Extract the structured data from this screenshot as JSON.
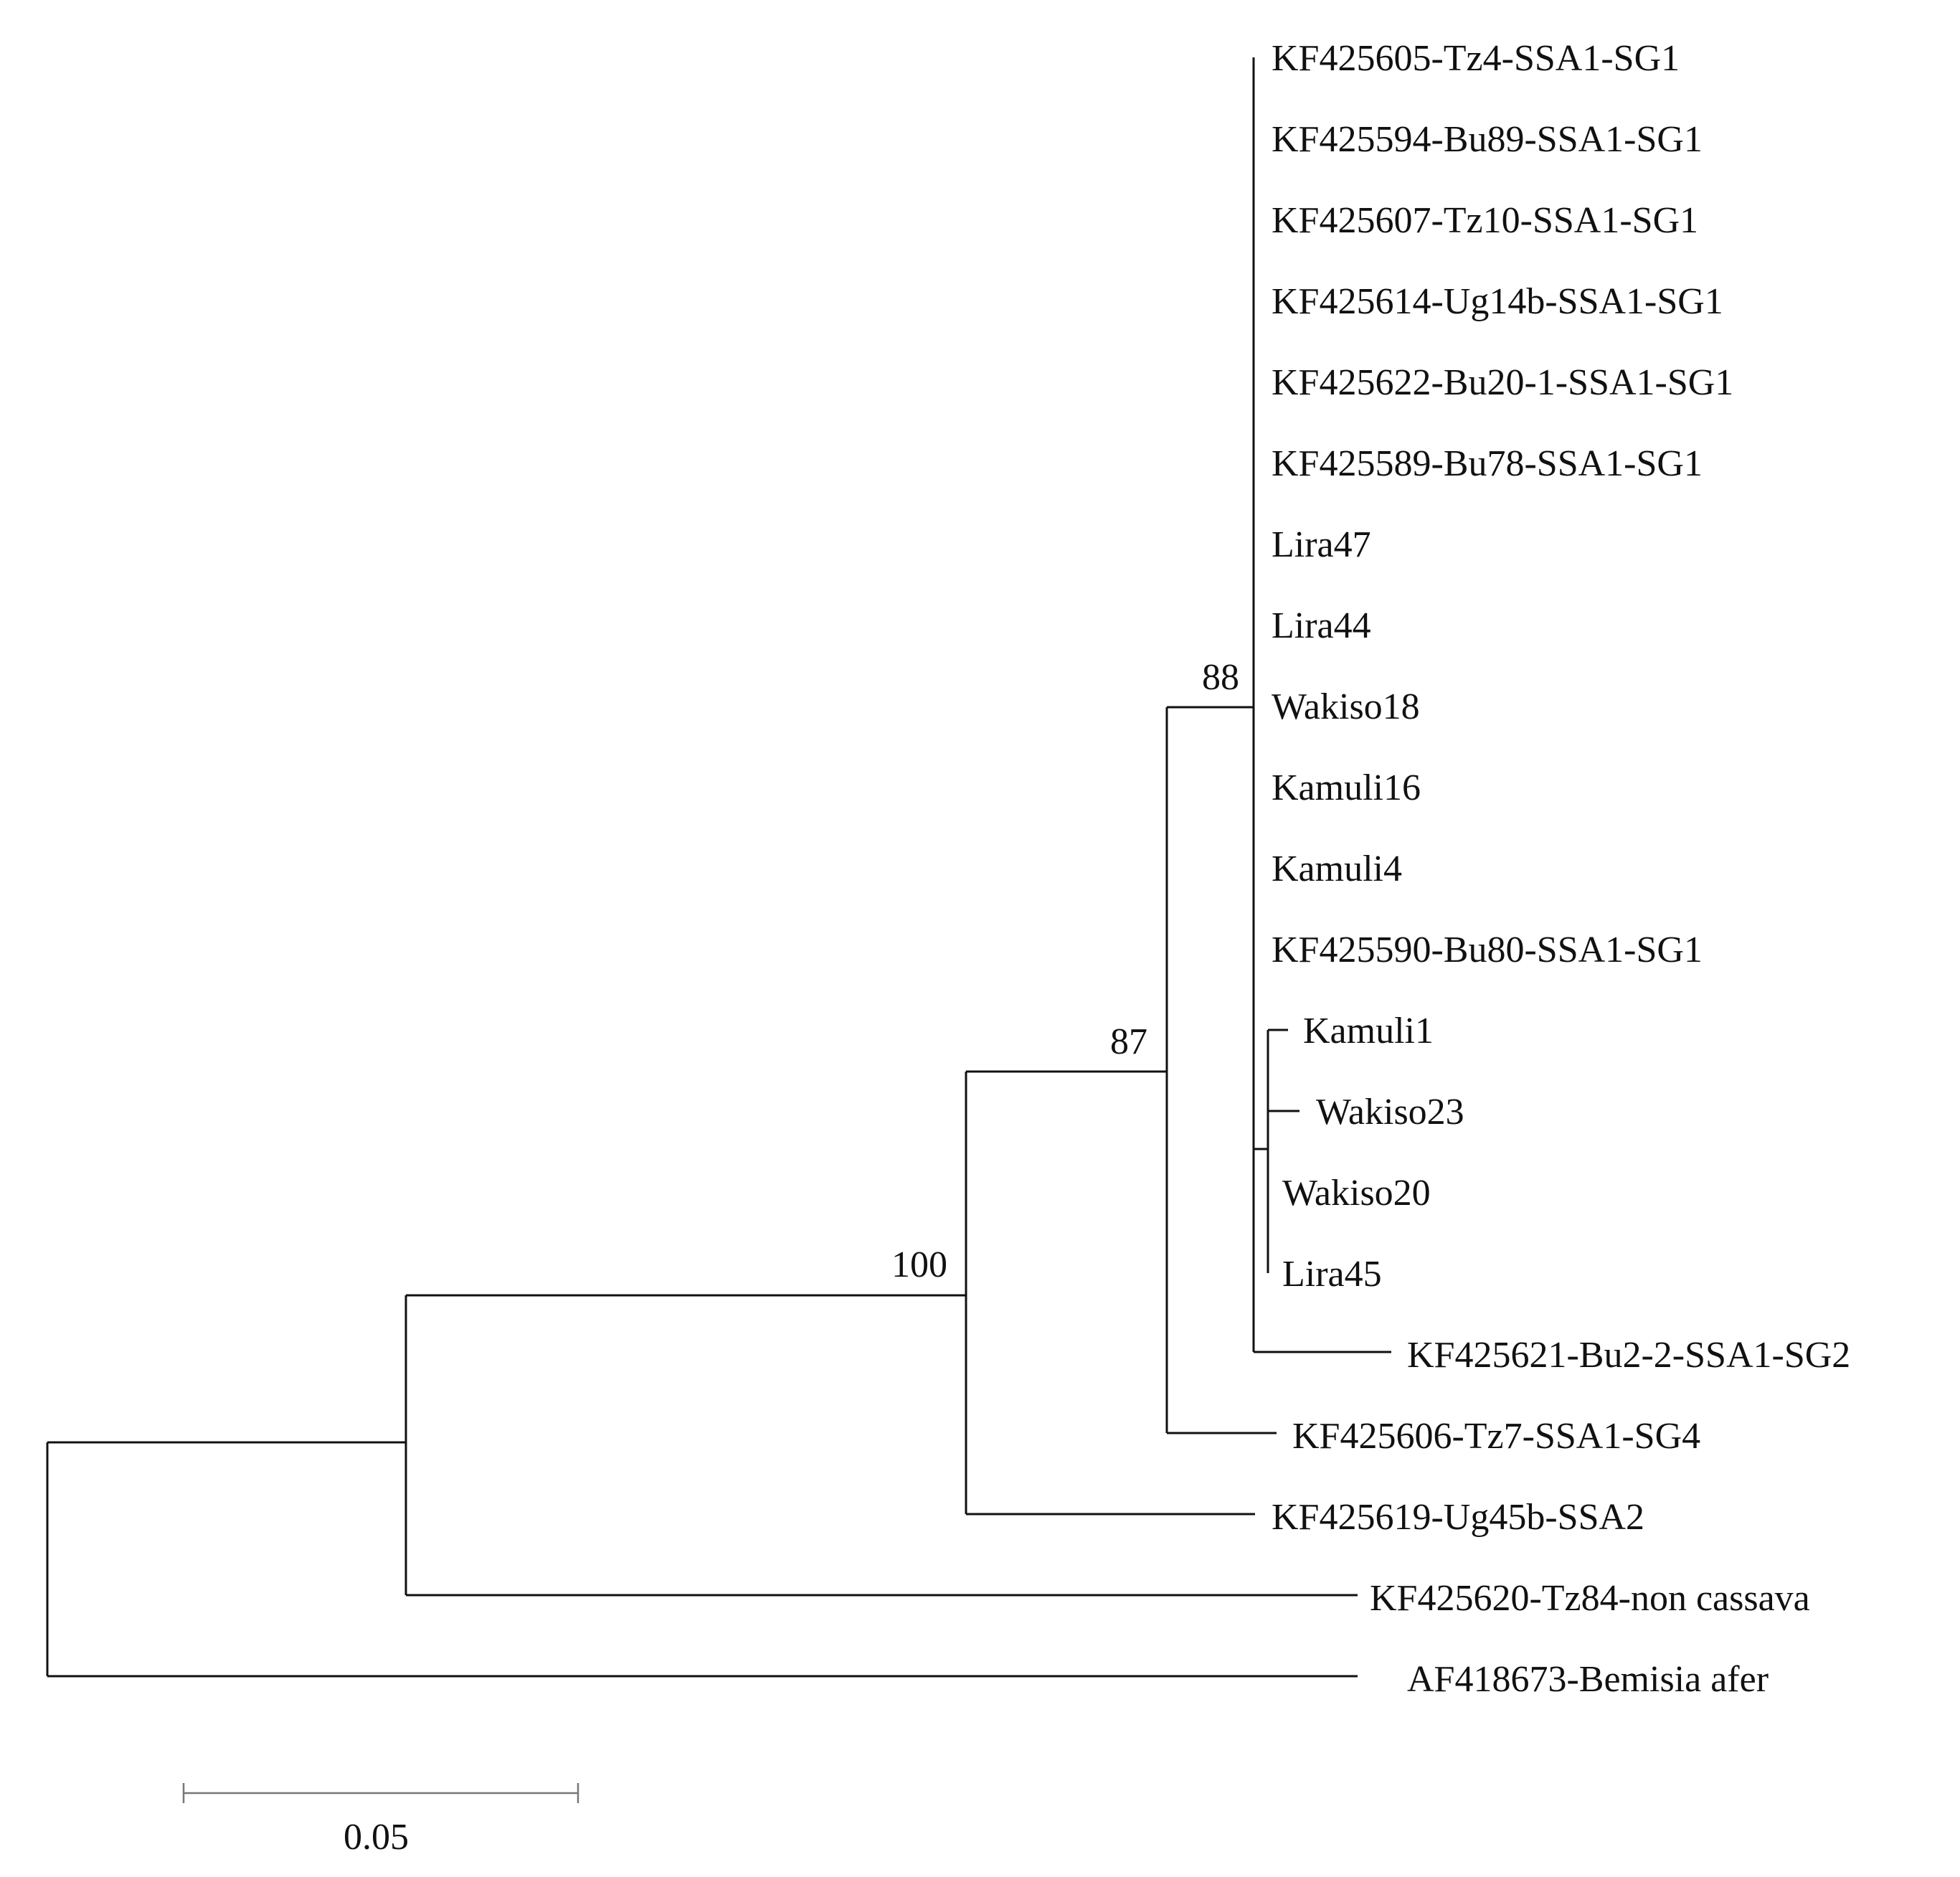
{
  "tree": {
    "leaves": [
      "KF425605-Tz4-SSA1-SG1",
      "KF425594-Bu89-SSA1-SG1",
      "KF425607-Tz10-SSA1-SG1",
      "KF425614-Ug14b-SSA1-SG1",
      "KF425622-Bu20-1-SSA1-SG1",
      "KF425589-Bu78-SSA1-SG1",
      "Lira47",
      "Lira44",
      "Wakiso18",
      "Kamuli16",
      "Kamuli4",
      "KF425590-Bu80-SSA1-SG1",
      "Kamuli1",
      "Wakiso23",
      "Wakiso20",
      "Lira45",
      "KF425621-Bu2-2-SSA1-SG2",
      "KF425606-Tz7-SSA1-SG4",
      "KF425619-Ug45b-SSA2",
      "KF425620-Tz84-non cassava",
      "AF418673-Bemisia afer"
    ],
    "bootstrap": {
      "n100": "100",
      "n87": "87",
      "n88": "88"
    },
    "scale_bar": {
      "label": "0.05",
      "value": 0.05
    }
  }
}
